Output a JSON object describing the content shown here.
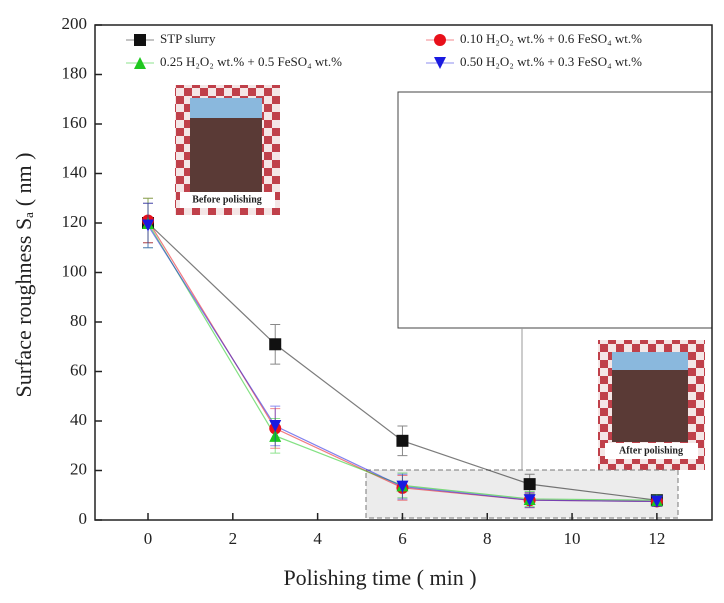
{
  "chart_data": {
    "type": "line",
    "x_label": "Polishing time ( min )",
    "y_label": "Surface roughness Sₐ ( nm )",
    "x": [
      0,
      3,
      6,
      9,
      12
    ],
    "series": [
      {
        "name": "STP slurry",
        "color": "#111111",
        "marker": "square",
        "values": [
          120,
          71,
          32,
          14.5,
          8
        ],
        "errors": [
          8,
          8,
          6,
          4,
          2
        ]
      },
      {
        "name": "0.10 H₂O₂ wt.% + 0.6 FeSO₄ wt.%",
        "color": "#e8101a",
        "marker": "circle",
        "values": [
          121,
          37,
          13,
          8,
          7.5
        ],
        "errors": [
          9,
          8,
          5,
          3,
          2
        ]
      },
      {
        "name": "0.25 H₂O₂ wt.% + 0.5 FeSO₄ wt.%",
        "color": "#1ec81e",
        "marker": "triangle-up",
        "values": [
          120,
          34,
          14,
          8.5,
          8
        ],
        "errors": [
          10,
          7,
          5,
          3,
          2
        ]
      },
      {
        "name": "0.50 H₂O₂ wt.% + 0.3 FeSO₄ wt.%",
        "color": "#1a1ae0",
        "marker": "triangle-down",
        "values": [
          119,
          38,
          13.5,
          8,
          7.5
        ],
        "errors": [
          9,
          8,
          5,
          3,
          2
        ]
      }
    ],
    "xlim": [
      -1.25,
      13.3
    ],
    "ylim": [
      0,
      200
    ],
    "xticks": [
      0,
      2,
      4,
      6,
      8,
      10,
      12
    ],
    "yticks": [
      0,
      20,
      40,
      60,
      80,
      100,
      120,
      140,
      160,
      180,
      200
    ],
    "annotations": [
      "Before polishing",
      "After polishing"
    ]
  }
}
